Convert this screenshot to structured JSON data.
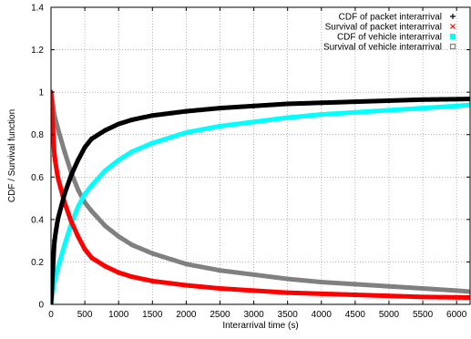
{
  "chart_data": {
    "type": "line",
    "title": "",
    "xlabel": "Interarrival time (s)",
    "ylabel": "CDF / Survival function",
    "xlim": [
      0,
      6200
    ],
    "ylim": [
      0,
      1.4
    ],
    "xticks": [
      0,
      500,
      1000,
      1500,
      2000,
      2500,
      3000,
      3500,
      4000,
      4500,
      5000,
      5500,
      6000
    ],
    "yticks": [
      0,
      0.2,
      0.4,
      0.6,
      0.8,
      1.0,
      1.2,
      1.4
    ],
    "ytick_labels": [
      "0",
      "0.2",
      "0.4",
      "0.6",
      "0.8",
      "1",
      "1.2",
      "1.4"
    ],
    "grid": true,
    "legend_position": "top-right",
    "series": [
      {
        "name": "CDF of packet interarrival",
        "marker": "+",
        "color": "#000000",
        "x": [
          0,
          50,
          100,
          200,
          300,
          400,
          500,
          600,
          800,
          1000,
          1200,
          1500,
          2000,
          2500,
          3000,
          3500,
          4000,
          4500,
          5000,
          5500,
          6000,
          6200
        ],
        "y": [
          0.0,
          0.3,
          0.4,
          0.52,
          0.61,
          0.68,
          0.74,
          0.78,
          0.82,
          0.85,
          0.87,
          0.89,
          0.91,
          0.925,
          0.935,
          0.945,
          0.95,
          0.955,
          0.96,
          0.965,
          0.967,
          0.968
        ]
      },
      {
        "name": "Survival of packet interarrival",
        "marker": "x",
        "color": "#ff0000",
        "x": [
          0,
          50,
          100,
          200,
          300,
          400,
          500,
          600,
          800,
          1000,
          1200,
          1500,
          2000,
          2500,
          3000,
          3500,
          4000,
          4500,
          5000,
          5500,
          6000,
          6200
        ],
        "y": [
          1.0,
          0.7,
          0.6,
          0.48,
          0.39,
          0.32,
          0.26,
          0.22,
          0.18,
          0.15,
          0.13,
          0.11,
          0.09,
          0.075,
          0.065,
          0.055,
          0.05,
          0.045,
          0.04,
          0.035,
          0.033,
          0.032
        ]
      },
      {
        "name": "CDF of vehicle interarrival",
        "marker": "square-filled",
        "color": "#00ffff",
        "x": [
          0,
          50,
          100,
          200,
          300,
          400,
          500,
          600,
          800,
          1000,
          1200,
          1500,
          2000,
          2500,
          3000,
          3500,
          4000,
          4500,
          5000,
          5500,
          6000,
          6200
        ],
        "y": [
          0.0,
          0.11,
          0.17,
          0.28,
          0.38,
          0.46,
          0.52,
          0.56,
          0.63,
          0.68,
          0.72,
          0.76,
          0.81,
          0.84,
          0.86,
          0.88,
          0.895,
          0.905,
          0.915,
          0.925,
          0.935,
          0.94
        ]
      },
      {
        "name": "Survival of vehicle interarrival",
        "marker": "square",
        "color": "#808080",
        "x": [
          0,
          50,
          100,
          200,
          300,
          400,
          500,
          600,
          800,
          1000,
          1200,
          1500,
          2000,
          2500,
          3000,
          3500,
          4000,
          4500,
          5000,
          5500,
          6000,
          6200
        ],
        "y": [
          1.0,
          0.89,
          0.83,
          0.72,
          0.62,
          0.54,
          0.48,
          0.44,
          0.37,
          0.32,
          0.28,
          0.24,
          0.19,
          0.16,
          0.14,
          0.12,
          0.105,
          0.095,
          0.085,
          0.075,
          0.065,
          0.06
        ]
      }
    ]
  }
}
